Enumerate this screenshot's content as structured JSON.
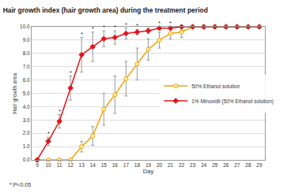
{
  "chart_data": {
    "type": "line",
    "title": "Hair growth index (hair growth area) during the treatment period",
    "x_label": "Day",
    "y_label": "Hair growth area",
    "x": [
      9,
      10,
      11,
      12,
      13,
      14,
      15,
      16,
      17,
      18,
      19,
      20,
      21,
      22,
      23,
      24,
      25,
      26,
      27,
      28,
      29
    ],
    "series": [
      {
        "name": "50% Ethanol solution",
        "color": "#f0a30a",
        "marker": "circle",
        "values": [
          0,
          0,
          0,
          0,
          1.0,
          1.8,
          3.8,
          4.9,
          6.1,
          7.2,
          8.3,
          9.0,
          9.5,
          9.6,
          10,
          10,
          10,
          10,
          10,
          10,
          10
        ],
        "errors": [
          0,
          0,
          0,
          0,
          0.4,
          0.7,
          1.2,
          1.4,
          1.3,
          1.2,
          0.8,
          0.6,
          0.4,
          0.4,
          0,
          0,
          0,
          0,
          0,
          0,
          0
        ]
      },
      {
        "name": "1% Minoxidil (50% Ethanol solution)",
        "color": "#e3141b",
        "marker": "diamond",
        "values": [
          0,
          1.4,
          2.9,
          5.4,
          7.9,
          8.5,
          9.1,
          9.2,
          9.5,
          9.6,
          9.7,
          9.9,
          9.9,
          10,
          10,
          10,
          10,
          10,
          10,
          10,
          10
        ],
        "errors": [
          0,
          0.3,
          0.5,
          0.9,
          1.3,
          1.1,
          0.6,
          0.5,
          0.4,
          0.2,
          0.2,
          0.1,
          0.1,
          0,
          0,
          0,
          0,
          0,
          0,
          0,
          0
        ]
      }
    ],
    "significance_mark": "*",
    "significance_days": [
      10,
      11,
      12,
      13,
      14,
      15,
      16,
      17,
      18,
      20,
      21
    ],
    "footnote": "*:P<0.05",
    "xlim": [
      8.5,
      29.5
    ],
    "xticks": [
      9,
      10,
      11,
      12,
      13,
      14,
      15,
      16,
      17,
      18,
      19,
      20,
      21,
      22,
      23,
      24,
      25,
      26,
      27,
      28,
      29
    ],
    "ylim": [
      0,
      10
    ],
    "yticks": [
      {
        "value": 0,
        "label": "0.0"
      },
      {
        "value": 1,
        "label": "1.0"
      },
      {
        "value": 2,
        "label": "2.0"
      },
      {
        "value": 3,
        "label": "3.0"
      },
      {
        "value": 4,
        "label": "4.0"
      },
      {
        "value": 5,
        "label": "5.0"
      },
      {
        "value": 6,
        "label": "6.0"
      },
      {
        "value": 7,
        "label": "7.0"
      },
      {
        "value": 8,
        "label": "8.0"
      },
      {
        "value": 9,
        "label": "9.0"
      },
      {
        "value": 10,
        "label": "10.0"
      }
    ],
    "grid": true,
    "legend": "right"
  }
}
